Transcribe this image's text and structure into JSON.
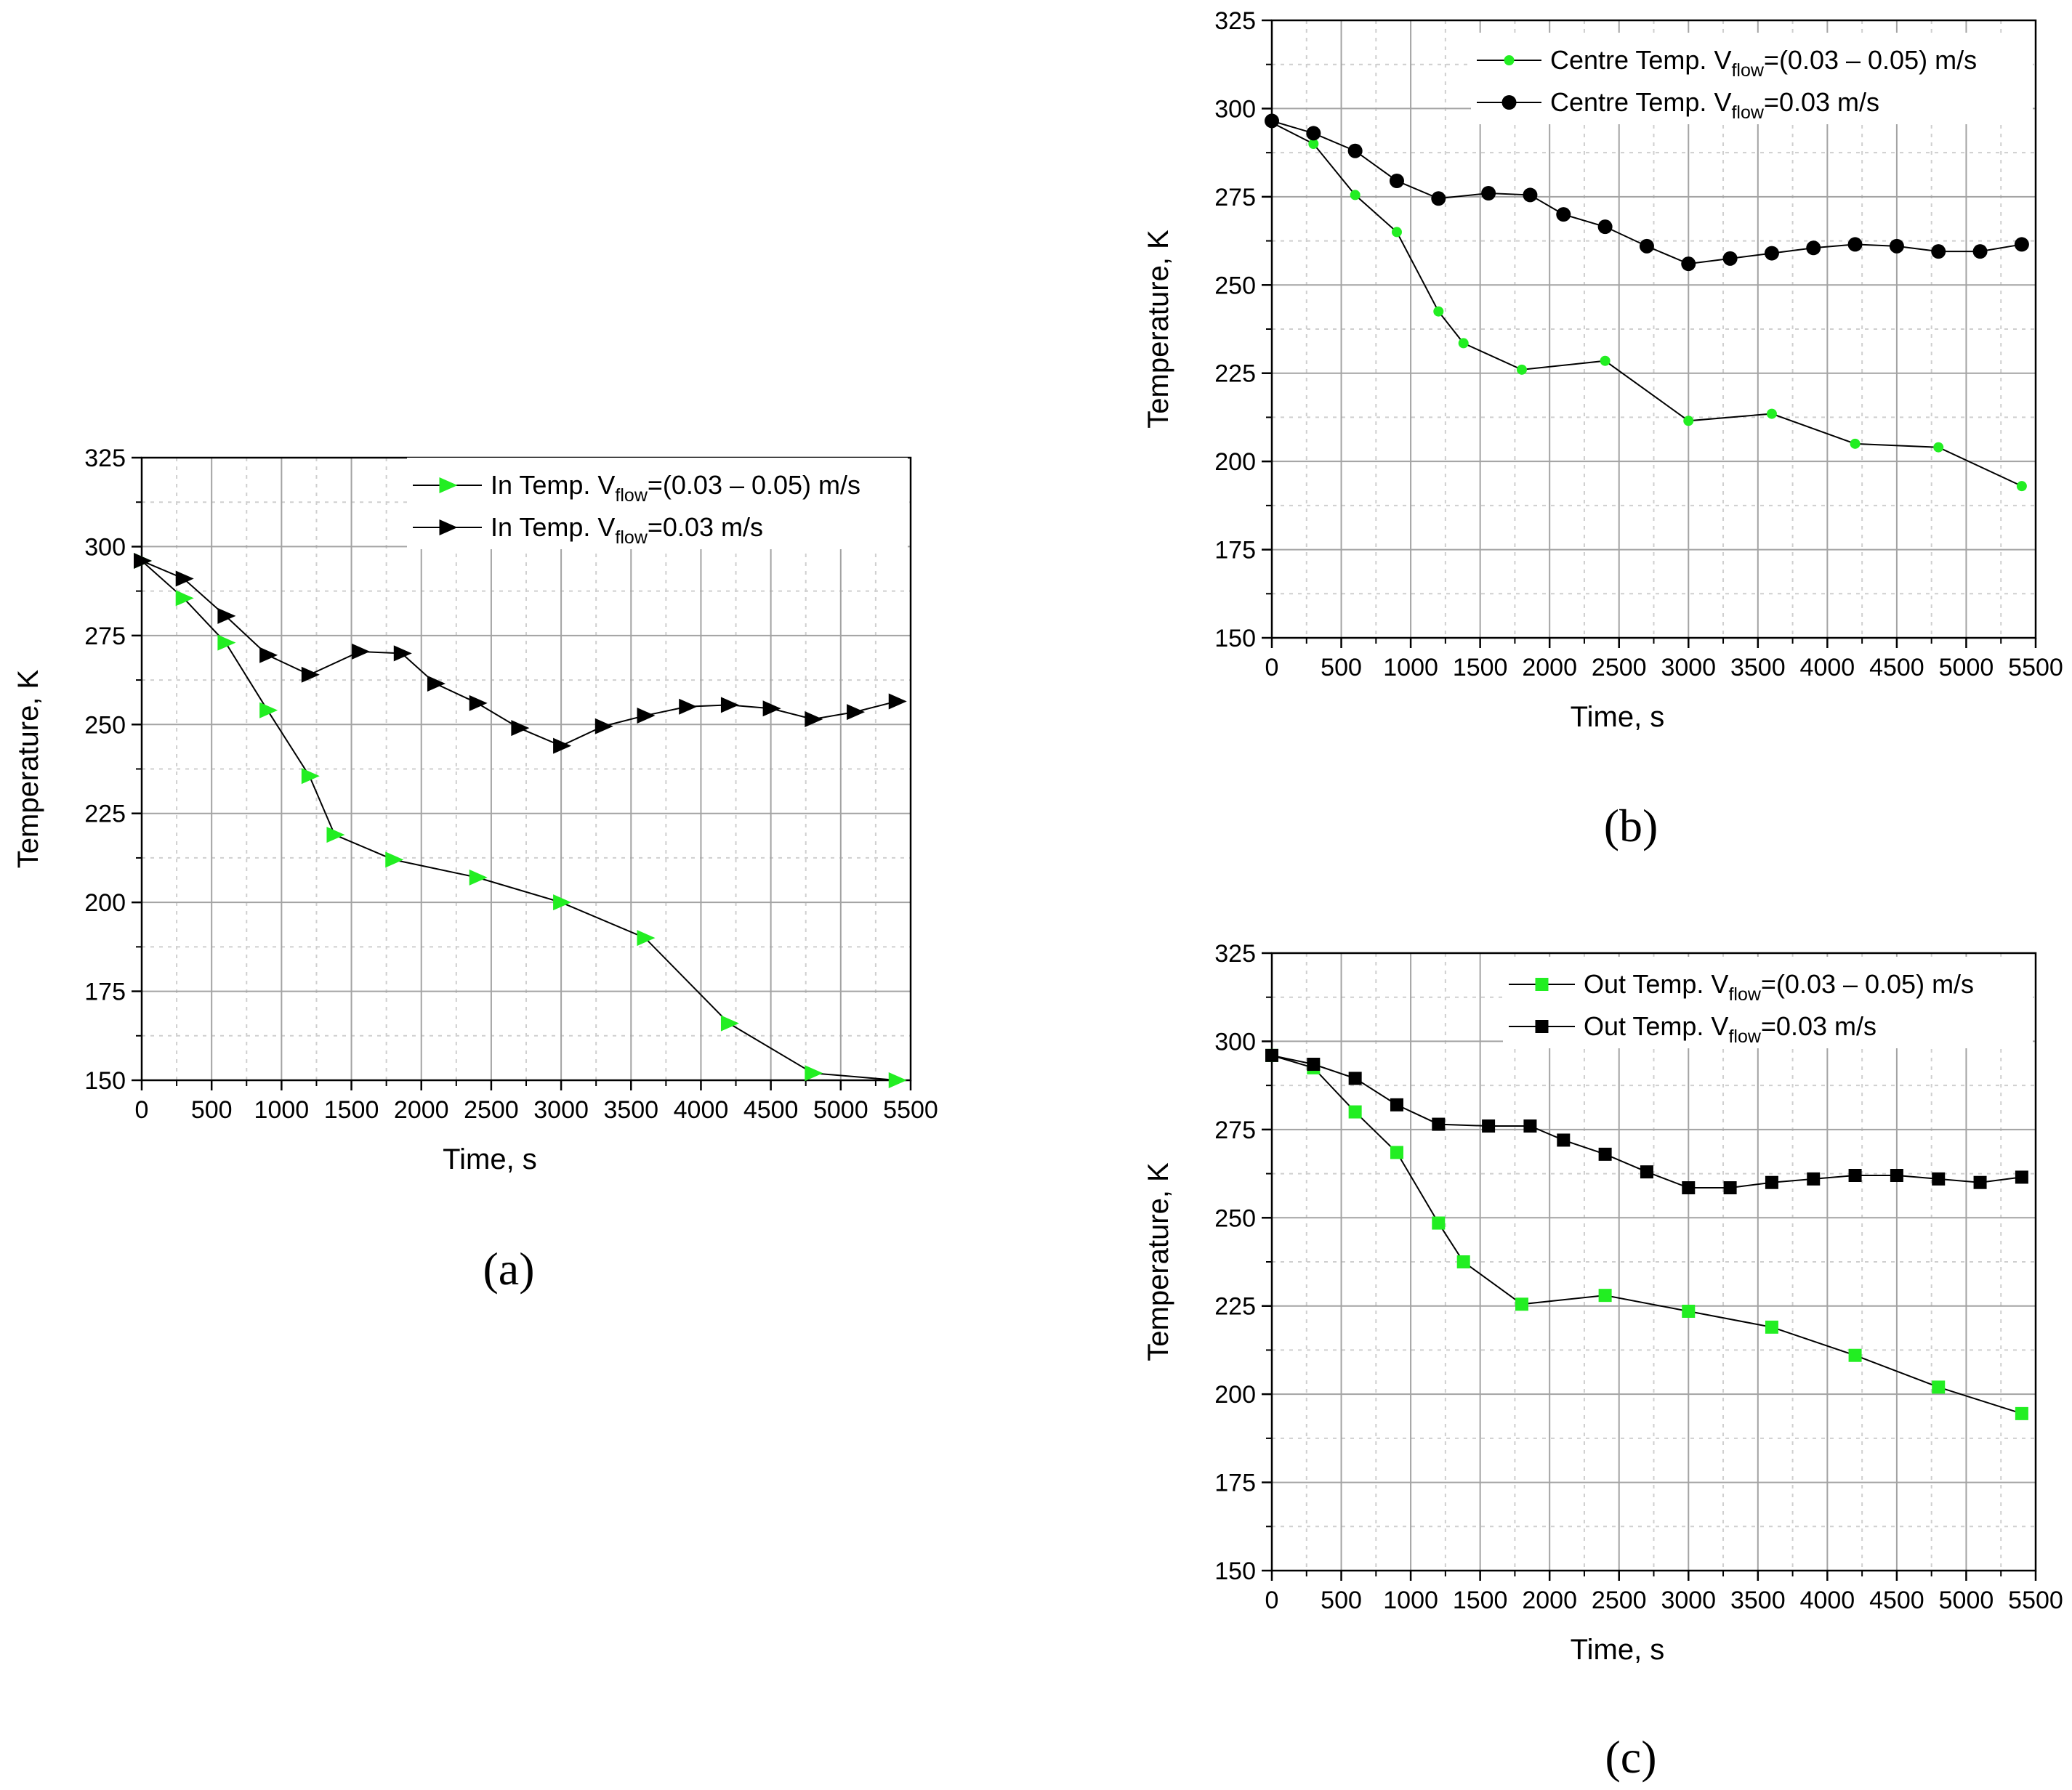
{
  "chart_data": [
    {
      "id": "a",
      "type": "line",
      "panel_label": "(a)",
      "xlabel": "Time, s",
      "ylabel": "Temperature, K",
      "xlim": [
        0,
        5500
      ],
      "ylim": [
        150,
        325
      ],
      "x_ticks": [
        0,
        500,
        1000,
        1500,
        2000,
        2500,
        3000,
        3500,
        4000,
        4500,
        5000,
        5500
      ],
      "y_ticks": [
        150,
        175,
        200,
        225,
        250,
        275,
        300,
        325
      ],
      "grid": true,
      "legend_position": "top-right",
      "series": [
        {
          "legend_prefix": "In Temp. V",
          "legend_sub": "flow",
          "legend_suffix": "=(0.03 – 0.05) m/s",
          "color": "#22ee22",
          "marker": "triangle-right",
          "x": [
            0,
            300,
            600,
            900,
            1200,
            1380,
            1800,
            2400,
            3000,
            3600,
            4200,
            4800,
            5400
          ],
          "y": [
            296,
            285.5,
            273,
            254,
            235.5,
            219,
            212,
            207,
            200,
            190,
            166,
            152,
            150
          ]
        },
        {
          "legend_prefix": "In Temp. V",
          "legend_sub": "flow",
          "legend_suffix": "=0.03 m/s",
          "color": "#000000",
          "marker": "triangle-right",
          "x": [
            0,
            300,
            600,
            900,
            1200,
            1560,
            1860,
            2100,
            2400,
            2700,
            3000,
            3300,
            3600,
            3900,
            4200,
            4500,
            4800,
            5100,
            5400
          ],
          "y": [
            296,
            291,
            280.5,
            269.5,
            264,
            270.5,
            270,
            261.5,
            256,
            249,
            244,
            249.5,
            252.5,
            255,
            255.5,
            254.5,
            251.5,
            253.5,
            256.5
          ]
        }
      ]
    },
    {
      "id": "b",
      "type": "line",
      "panel_label": "(b)",
      "xlabel": "Time, s",
      "ylabel": "Temperature, K",
      "xlim": [
        0,
        5500
      ],
      "ylim": [
        150,
        325
      ],
      "x_ticks": [
        0,
        500,
        1000,
        1500,
        2000,
        2500,
        3000,
        3500,
        4000,
        4500,
        5000,
        5500
      ],
      "y_ticks": [
        150,
        175,
        200,
        225,
        250,
        275,
        300,
        325
      ],
      "grid": true,
      "legend_position": "top-right",
      "series": [
        {
          "legend_prefix": "Centre Temp. V",
          "legend_sub": "flow",
          "legend_suffix": "=(0.03 – 0.05) m/s",
          "color": "#22ee22",
          "marker": "circle-small",
          "x": [
            0,
            300,
            600,
            900,
            1200,
            1380,
            1800,
            2400,
            3000,
            3600,
            4200,
            4800,
            5400
          ],
          "y": [
            296,
            290,
            275.5,
            265,
            242.5,
            233.5,
            226,
            228.5,
            211.5,
            213.5,
            205,
            204,
            193
          ]
        },
        {
          "legend_prefix": "Centre Temp. V",
          "legend_sub": "flow",
          "legend_suffix": "=0.03 m/s",
          "color": "#000000",
          "marker": "circle",
          "x": [
            0,
            300,
            600,
            900,
            1200,
            1560,
            1860,
            2100,
            2400,
            2700,
            3000,
            3300,
            3600,
            3900,
            4200,
            4500,
            4800,
            5100,
            5400
          ],
          "y": [
            296.5,
            293,
            288,
            279.5,
            274.5,
            276,
            275.5,
            270,
            266.5,
            261,
            256,
            257.5,
            259,
            260.5,
            261.5,
            261,
            259.5,
            259.5,
            261.5
          ]
        }
      ]
    },
    {
      "id": "c",
      "type": "line",
      "panel_label": "(c)",
      "xlabel": "Time, s",
      "ylabel": "Temperature, K",
      "xlim": [
        0,
        5500
      ],
      "ylim": [
        150,
        325
      ],
      "x_ticks": [
        0,
        500,
        1000,
        1500,
        2000,
        2500,
        3000,
        3500,
        4000,
        4500,
        5000,
        5500
      ],
      "y_ticks": [
        150,
        175,
        200,
        225,
        250,
        275,
        300,
        325
      ],
      "grid": true,
      "legend_position": "top-right",
      "series": [
        {
          "legend_prefix": "Out Temp. V",
          "legend_sub": "flow",
          "legend_suffix": "=(0.03 – 0.05) m/s",
          "color": "#22ee22",
          "marker": "square",
          "x": [
            0,
            300,
            600,
            900,
            1200,
            1380,
            1800,
            2400,
            3000,
            3600,
            4200,
            4800,
            5400
          ],
          "y": [
            296,
            292.5,
            280,
            268.5,
            248.5,
            237.5,
            225.5,
            228,
            223.5,
            219,
            211,
            202,
            194.5
          ]
        },
        {
          "legend_prefix": "Out Temp. V",
          "legend_sub": "flow",
          "legend_suffix": "=0.03 m/s",
          "color": "#000000",
          "marker": "square",
          "x": [
            0,
            300,
            600,
            900,
            1200,
            1560,
            1860,
            2100,
            2400,
            2700,
            3000,
            3300,
            3600,
            3900,
            4200,
            4500,
            4800,
            5100,
            5400
          ],
          "y": [
            296,
            293.5,
            289.5,
            282,
            276.5,
            276,
            276,
            272,
            268,
            263,
            258.5,
            258.5,
            260,
            261,
            262,
            262,
            261,
            260,
            261.5
          ]
        }
      ]
    }
  ]
}
